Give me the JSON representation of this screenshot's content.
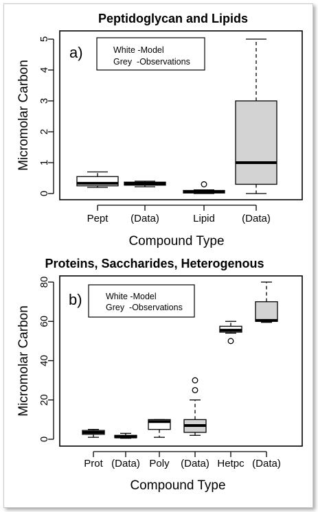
{
  "chart_data": [
    {
      "type": "box",
      "title": "Peptidoglycan and Lipids",
      "panel_label": "a)",
      "xlabel": "Compound Type",
      "ylabel": "Micromolar Carbon",
      "ylim": [
        0,
        5
      ],
      "yticks": [
        0,
        1,
        2,
        3,
        4,
        5
      ],
      "legend": {
        "position": "top-left",
        "entries": [
          "White -Model",
          "Grey  -Observations"
        ]
      },
      "categories": [
        "Pept",
        "(Data)",
        "Lipid",
        "(Data)"
      ],
      "boxes": [
        {
          "category": "Pept",
          "fill": "#ffffff",
          "min": 0.2,
          "q1": 0.25,
          "median": 0.33,
          "q3": 0.55,
          "max": 0.7,
          "outliers": []
        },
        {
          "category": "(Data)",
          "fill": "#d3d3d3",
          "min": 0.22,
          "q1": 0.27,
          "median": 0.32,
          "q3": 0.37,
          "max": 0.4,
          "outliers": []
        },
        {
          "category": "Lipid",
          "fill": "#ffffff",
          "min": 0.0,
          "q1": 0.02,
          "median": 0.05,
          "q3": 0.1,
          "max": 0.12,
          "outliers": [
            0.3
          ]
        },
        {
          "category": "(Data)",
          "fill": "#d3d3d3",
          "min": 0.0,
          "q1": 0.3,
          "median": 1.0,
          "q3": 3.0,
          "max": 5.0,
          "outliers": []
        }
      ]
    },
    {
      "type": "box",
      "title": "Proteins, Saccharides, Heterogenous",
      "panel_label": "b)",
      "xlabel": "Compound Type",
      "ylabel": "Micromolar Carbon",
      "ylim": [
        0,
        80
      ],
      "yticks": [
        0,
        20,
        40,
        60,
        80
      ],
      "legend": {
        "position": "top-left",
        "entries": [
          "White -Model",
          "Grey  -Observations"
        ]
      },
      "categories": [
        "Prot",
        "(Data)",
        "Poly",
        "(Data)",
        "Hetpc",
        "(Data)"
      ],
      "boxes": [
        {
          "category": "Prot",
          "fill": "#ffffff",
          "min": 1.0,
          "q1": 2.5,
          "median": 3.5,
          "q3": 4.5,
          "max": 5.0,
          "outliers": []
        },
        {
          "category": "(Data)",
          "fill": "#d3d3d3",
          "min": 0.5,
          "q1": 0.8,
          "median": 1.2,
          "q3": 2.0,
          "max": 3.0,
          "outliers": []
        },
        {
          "category": "Poly",
          "fill": "#ffffff",
          "min": 1.0,
          "q1": 5.0,
          "median": 9.0,
          "q3": 10.0,
          "max": 10.0,
          "outliers": []
        },
        {
          "category": "(Data)",
          "fill": "#d3d3d3",
          "min": 2.0,
          "q1": 3.5,
          "median": 7.0,
          "q3": 10.0,
          "max": 20.0,
          "outliers": [
            25,
            30
          ]
        },
        {
          "category": "Hetpc",
          "fill": "#ffffff",
          "min": 54.0,
          "q1": 54.5,
          "median": 55.5,
          "q3": 57.5,
          "max": 60.0,
          "outliers": [
            50
          ]
        },
        {
          "category": "(Data)",
          "fill": "#d3d3d3",
          "min": 59.5,
          "q1": 60.0,
          "median": 60.5,
          "q3": 70.0,
          "max": 80.0,
          "outliers": []
        }
      ]
    }
  ]
}
